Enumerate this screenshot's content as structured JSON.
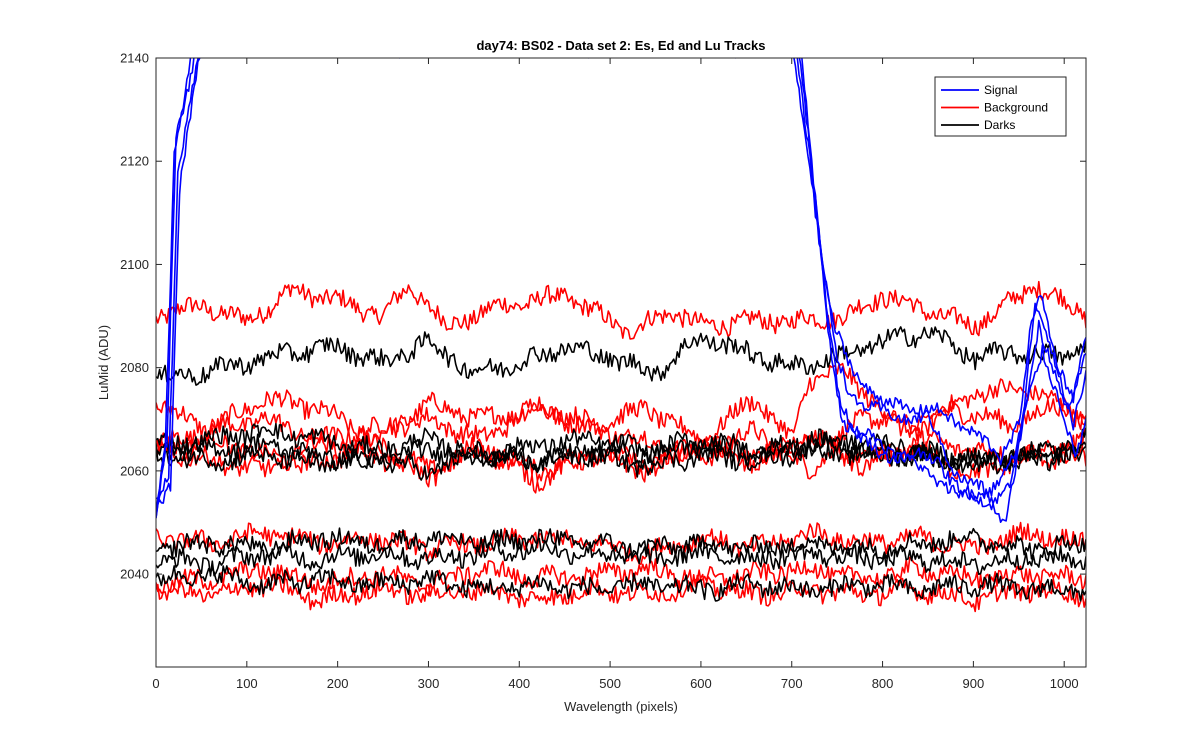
{
  "chart_data": {
    "type": "line",
    "title": "day74: BS02 - Data set 2: Es, Ed and Lu Tracks",
    "xlabel": "Wavelength (pixels)",
    "ylabel": "LuMid (ADU)",
    "xlim": [
      0,
      1024
    ],
    "ylim": [
      2022,
      2140
    ],
    "xticks": [
      0,
      100,
      200,
      300,
      400,
      500,
      600,
      700,
      800,
      900,
      1000
    ],
    "yticks": [
      2040,
      2060,
      2080,
      2100,
      2120,
      2140
    ],
    "grid": false,
    "legend_position": "top-right",
    "legend": [
      {
        "name": "Signal",
        "color": "#0000ff"
      },
      {
        "name": "Background",
        "color": "#ff0000"
      },
      {
        "name": "Darks",
        "color": "#000000"
      }
    ],
    "series": [
      {
        "group": "Signal",
        "color": "#0000ff",
        "x": [
          0,
          10,
          20,
          40,
          700,
          720,
          730,
          745,
          760,
          780,
          800,
          850,
          900,
          930,
          950,
          965,
          975,
          990,
          1010,
          1024
        ],
        "y": [
          2052,
          2062,
          2120,
          2142,
          2142,
          2120,
          2105,
          2088,
          2082,
          2077,
          2073,
          2072,
          2068,
          2062,
          2070,
          2090,
          2093,
          2082,
          2075,
          2086
        ]
      },
      {
        "group": "Signal",
        "color": "#0000ff",
        "x": [
          0,
          12,
          22,
          45,
          705,
          722,
          735,
          750,
          765,
          785,
          805,
          850,
          880,
          910,
          935,
          955,
          968,
          985,
          1005,
          1024
        ],
        "y": [
          2053,
          2065,
          2125,
          2142,
          2142,
          2118,
          2098,
          2082,
          2075,
          2072,
          2071,
          2070,
          2060,
          2056,
          2050,
          2070,
          2092,
          2085,
          2072,
          2082
        ]
      },
      {
        "group": "Signal",
        "color": "#0000ff",
        "x": [
          0,
          14,
          24,
          48,
          708,
          724,
          738,
          752,
          770,
          790,
          810,
          860,
          890,
          915,
          940,
          958,
          972,
          990,
          1010,
          1024
        ],
        "y": [
          2051,
          2060,
          2118,
          2142,
          2142,
          2115,
          2092,
          2075,
          2068,
          2066,
          2064,
          2062,
          2056,
          2053,
          2058,
          2072,
          2088,
          2080,
          2068,
          2078
        ]
      },
      {
        "group": "Signal",
        "color": "#0000ff",
        "x": [
          0,
          16,
          26,
          50,
          710,
          726,
          742,
          756,
          775,
          795,
          815,
          865,
          895,
          920,
          945,
          962,
          976,
          995,
          1012,
          1024
        ],
        "y": [
          2052,
          2058,
          2115,
          2142,
          2142,
          2112,
          2085,
          2070,
          2066,
          2064,
          2063,
          2058,
          2054,
          2057,
          2062,
          2075,
          2084,
          2073,
          2062,
          2070
        ]
      },
      {
        "group": "Background",
        "color": "#ff0000",
        "x": [
          0,
          50,
          100,
          150,
          200,
          250,
          280,
          320,
          380,
          420,
          450,
          520,
          570,
          600,
          650,
          700,
          760,
          800,
          850,
          900,
          970,
          1024
        ],
        "y": [
          2090,
          2092,
          2089,
          2095,
          2093,
          2090,
          2096,
          2088,
          2092,
          2093,
          2094,
          2087,
          2091,
          2088,
          2089,
          2089,
          2090,
          2094,
          2091,
          2088,
          2096,
          2090
        ]
      },
      {
        "group": "Background",
        "color": "#ff0000",
        "x": [
          0,
          60,
          120,
          180,
          240,
          300,
          360,
          420,
          480,
          540,
          600,
          660,
          720,
          780,
          840,
          900,
          960,
          1024
        ],
        "y": [
          2073,
          2068,
          2074,
          2072,
          2066,
          2073,
          2070,
          2072,
          2068,
          2066,
          2062,
          2068,
          2060,
          2071,
          2068,
          2075,
          2076,
          2070
        ]
      },
      {
        "group": "Background",
        "color": "#ff0000",
        "x": [
          0,
          60,
          120,
          180,
          240,
          300,
          360,
          420,
          480,
          540,
          600,
          660,
          700,
          720,
          760,
          820,
          880,
          940,
          1000,
          1024
        ],
        "y": [
          2065,
          2068,
          2070,
          2066,
          2068,
          2070,
          2066,
          2073,
          2069,
          2072,
          2066,
          2074,
          2066,
          2078,
          2079,
          2068,
          2072,
          2069,
          2073,
          2070
        ]
      },
      {
        "group": "Background",
        "color": "#ff0000",
        "x": [
          0,
          60,
          120,
          180,
          240,
          300,
          360,
          420,
          480,
          540,
          600,
          660,
          720,
          780,
          840,
          900,
          960,
          1024
        ],
        "y": [
          2064,
          2066,
          2063,
          2061,
          2066,
          2060,
          2065,
          2060,
          2064,
          2061,
          2066,
          2063,
          2067,
          2061,
          2066,
          2064,
          2063,
          2066
        ]
      },
      {
        "group": "Background",
        "color": "#ff0000",
        "x": [
          0,
          60,
          120,
          180,
          240,
          300,
          360,
          420,
          480,
          540,
          600,
          660,
          720,
          780,
          840,
          900,
          960,
          1024
        ],
        "y": [
          2064,
          2062,
          2060,
          2066,
          2063,
          2059,
          2064,
          2058,
          2063,
          2060,
          2065,
          2061,
          2066,
          2062,
          2064,
          2059,
          2063,
          2062
        ]
      },
      {
        "group": "Background",
        "color": "#ff0000",
        "x": [
          0,
          60,
          120,
          180,
          240,
          300,
          360,
          420,
          480,
          540,
          600,
          660,
          720,
          780,
          840,
          900,
          960,
          1024
        ],
        "y": [
          2047,
          2046,
          2048,
          2046,
          2047,
          2045,
          2046,
          2047,
          2046,
          2044,
          2047,
          2045,
          2048,
          2046,
          2047,
          2045,
          2048,
          2046
        ]
      },
      {
        "group": "Background",
        "color": "#ff0000",
        "x": [
          0,
          60,
          120,
          180,
          240,
          300,
          360,
          420,
          480,
          540,
          600,
          660,
          720,
          780,
          840,
          900,
          960,
          1024
        ],
        "y": [
          2038,
          2039,
          2041,
          2038,
          2040,
          2038,
          2041,
          2039,
          2040,
          2041,
          2039,
          2040,
          2041,
          2039,
          2041,
          2039,
          2040,
          2039
        ]
      },
      {
        "group": "Background",
        "color": "#ff0000",
        "x": [
          0,
          60,
          120,
          180,
          240,
          300,
          360,
          420,
          480,
          540,
          600,
          660,
          720,
          780,
          840,
          900,
          960,
          1024
        ],
        "y": [
          2037,
          2036,
          2038,
          2035,
          2037,
          2036,
          2037,
          2035,
          2037,
          2036,
          2038,
          2036,
          2037,
          2036,
          2037,
          2035,
          2037,
          2036
        ]
      },
      {
        "group": "Darks",
        "color": "#000000",
        "x": [
          0,
          50,
          100,
          150,
          200,
          250,
          300,
          350,
          400,
          450,
          500,
          550,
          600,
          650,
          700,
          750,
          800,
          850,
          900,
          950,
          1000,
          1024
        ],
        "y": [
          2078,
          2079,
          2081,
          2083,
          2084,
          2081,
          2085,
          2079,
          2081,
          2084,
          2082,
          2079,
          2086,
          2083,
          2080,
          2082,
          2085,
          2087,
          2082,
          2083,
          2082,
          2085
        ]
      },
      {
        "group": "Darks",
        "color": "#000000",
        "x": [
          0,
          60,
          120,
          180,
          240,
          300,
          360,
          420,
          480,
          540,
          600,
          660,
          720,
          780,
          840,
          900,
          960,
          1024
        ],
        "y": [
          2065,
          2066,
          2068,
          2066,
          2064,
          2066,
          2063,
          2065,
          2066,
          2064,
          2066,
          2064,
          2065,
          2066,
          2064,
          2061,
          2063,
          2066
        ]
      },
      {
        "group": "Darks",
        "color": "#000000",
        "x": [
          0,
          60,
          120,
          180,
          240,
          300,
          360,
          420,
          480,
          540,
          600,
          660,
          720,
          780,
          840,
          900,
          960,
          1024
        ],
        "y": [
          2064,
          2064,
          2065,
          2063,
          2062,
          2064,
          2063,
          2062,
          2064,
          2063,
          2065,
          2063,
          2066,
          2064,
          2063,
          2062,
          2063,
          2064
        ]
      },
      {
        "group": "Darks",
        "color": "#000000",
        "x": [
          0,
          60,
          120,
          180,
          240,
          300,
          360,
          420,
          480,
          540,
          600,
          660,
          720,
          780,
          840,
          900,
          960,
          1024
        ],
        "y": [
          2063,
          2062,
          2063,
          2061,
          2062,
          2060,
          2063,
          2062,
          2063,
          2061,
          2063,
          2062,
          2064,
          2063,
          2063,
          2062,
          2062,
          2063
        ]
      },
      {
        "group": "Darks",
        "color": "#000000",
        "x": [
          0,
          60,
          120,
          180,
          240,
          300,
          360,
          420,
          480,
          540,
          600,
          660,
          720,
          780,
          840,
          900,
          960,
          1024
        ],
        "y": [
          2045,
          2046,
          2045,
          2047,
          2046,
          2047,
          2046,
          2047,
          2046,
          2045,
          2046,
          2045,
          2046,
          2045,
          2046,
          2047,
          2045,
          2046
        ]
      },
      {
        "group": "Darks",
        "color": "#000000",
        "x": [
          0,
          60,
          120,
          180,
          240,
          300,
          360,
          420,
          480,
          540,
          600,
          660,
          720,
          780,
          840,
          900,
          960,
          1024
        ],
        "y": [
          2043,
          2042,
          2044,
          2043,
          2044,
          2043,
          2044,
          2045,
          2044,
          2043,
          2044,
          2043,
          2044,
          2043,
          2043,
          2042,
          2043,
          2043
        ]
      },
      {
        "group": "Darks",
        "color": "#000000",
        "x": [
          0,
          60,
          120,
          180,
          240,
          300,
          360,
          420,
          480,
          540,
          600,
          660,
          720,
          780,
          840,
          900,
          960,
          1024
        ],
        "y": [
          2039,
          2040,
          2038,
          2039,
          2038,
          2039,
          2037,
          2038,
          2037,
          2038,
          2037,
          2038,
          2037,
          2038,
          2037,
          2038,
          2037,
          2037
        ]
      }
    ]
  }
}
